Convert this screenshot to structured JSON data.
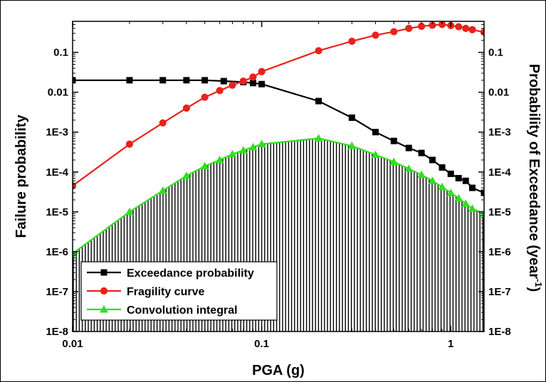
{
  "chart_data": {
    "type": "line",
    "x_scale": "log",
    "y_scale": "log",
    "xlim": [
      0.01,
      1.5
    ],
    "ylim": [
      1e-08,
      0.6
    ],
    "xlabel": "PGA (g)",
    "ylabel": "Failure probability",
    "ylabel_right_main": "Probability of Exceedance (year",
    "ylabel_right_sup": "-1",
    "ylabel_right_tail": ")",
    "x_ticks": [
      0.01,
      0.1,
      1
    ],
    "x_tick_labels": [
      "0.01",
      "0.1",
      "1"
    ],
    "y_ticks": [
      1e-08,
      1e-07,
      1e-06,
      1e-05,
      0.0001,
      0.001,
      0.01,
      0.1
    ],
    "y_tick_labels": [
      "1E-8",
      "1E-7",
      "1E-6",
      "1E-5",
      "1E-4",
      "1E-3",
      "0.01",
      "0.1"
    ],
    "legend_position": "bottom-left",
    "series": [
      {
        "name": "Exceedance probability",
        "color": "#000000",
        "marker": "square",
        "points": [
          [
            0.01,
            0.02
          ],
          [
            0.02,
            0.02
          ],
          [
            0.03,
            0.02
          ],
          [
            0.04,
            0.02
          ],
          [
            0.05,
            0.02
          ],
          [
            0.063,
            0.019
          ],
          [
            0.08,
            0.018
          ],
          [
            0.09,
            0.017
          ],
          [
            0.1,
            0.016
          ],
          [
            0.2,
            0.006
          ],
          [
            0.3,
            0.0023
          ],
          [
            0.4,
            0.001
          ],
          [
            0.5,
            0.0006
          ],
          [
            0.6,
            0.0004
          ],
          [
            0.7,
            0.0003
          ],
          [
            0.8,
            0.0002
          ],
          [
            0.9,
            0.00013
          ],
          [
            1.0,
            9e-05
          ],
          [
            1.1,
            7e-05
          ],
          [
            1.2,
            6e-05
          ],
          [
            1.3,
            4e-05
          ],
          [
            1.5,
            3e-05
          ]
        ]
      },
      {
        "name": "Fragility curve",
        "color": "#e8221b",
        "marker": "circle",
        "points": [
          [
            0.01,
            4.5e-05
          ],
          [
            0.02,
            0.0005
          ],
          [
            0.03,
            0.0017
          ],
          [
            0.04,
            0.004
          ],
          [
            0.05,
            0.0075
          ],
          [
            0.06,
            0.011
          ],
          [
            0.07,
            0.015
          ],
          [
            0.08,
            0.019
          ],
          [
            0.09,
            0.024
          ],
          [
            0.1,
            0.033
          ],
          [
            0.2,
            0.11
          ],
          [
            0.3,
            0.19
          ],
          [
            0.4,
            0.27
          ],
          [
            0.5,
            0.33
          ],
          [
            0.6,
            0.4
          ],
          [
            0.7,
            0.45
          ],
          [
            0.8,
            0.48
          ],
          [
            0.9,
            0.5
          ],
          [
            1.0,
            0.47
          ],
          [
            1.1,
            0.44
          ],
          [
            1.2,
            0.4
          ],
          [
            1.3,
            0.37
          ],
          [
            1.5,
            0.32
          ]
        ]
      },
      {
        "name": "Convolution integral",
        "color": "#33dd22",
        "marker": "triangle",
        "points": [
          [
            0.01,
            9e-07
          ],
          [
            0.02,
            1e-05
          ],
          [
            0.03,
            3.4e-05
          ],
          [
            0.04,
            8e-05
          ],
          [
            0.05,
            0.00014
          ],
          [
            0.06,
            0.0002
          ],
          [
            0.07,
            0.00028
          ],
          [
            0.08,
            0.00035
          ],
          [
            0.09,
            0.00042
          ],
          [
            0.1,
            0.0005
          ],
          [
            0.2,
            0.0007
          ],
          [
            0.3,
            0.00045
          ],
          [
            0.4,
            0.00027
          ],
          [
            0.5,
            0.00018
          ],
          [
            0.6,
            0.00012
          ],
          [
            0.7,
            8.5e-05
          ],
          [
            0.8,
            6e-05
          ],
          [
            0.9,
            4.2e-05
          ],
          [
            1.0,
            3e-05
          ],
          [
            1.1,
            2.2e-05
          ],
          [
            1.2,
            1.6e-05
          ],
          [
            1.3,
            1.2e-05
          ],
          [
            1.5,
            9e-06
          ]
        ]
      }
    ]
  }
}
